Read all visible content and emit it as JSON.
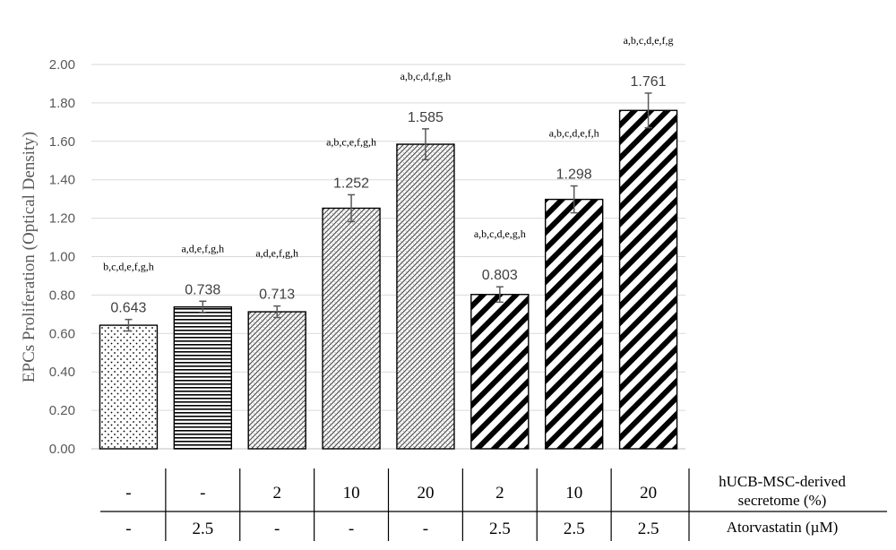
{
  "chart_data": {
    "type": "bar",
    "ylabel": "EPCs Proliferation (Optical Density)",
    "ylim": [
      0,
      2.0
    ],
    "yticks": [
      "0.00",
      "0.20",
      "0.40",
      "0.60",
      "0.80",
      "1.00",
      "1.20",
      "1.40",
      "1.60",
      "1.80",
      "2.00"
    ],
    "grid": true,
    "bars": [
      {
        "value": 0.643,
        "label": "0.643",
        "error": 0.03,
        "sig": "b,c,d,e,f,g,h",
        "pattern": "dots",
        "secretome": "-",
        "atorvastatin": "-"
      },
      {
        "value": 0.738,
        "label": "0.738",
        "error": 0.03,
        "sig": "a,d,e,f,g,h",
        "pattern": "hlines",
        "secretome": "-",
        "atorvastatin": "2.5"
      },
      {
        "value": 0.713,
        "label": "0.713",
        "error": 0.03,
        "sig": "a,d,e,f,g,h",
        "pattern": "fine",
        "secretome": "2",
        "atorvastatin": "-"
      },
      {
        "value": 1.252,
        "label": "1.252",
        "error": 0.07,
        "sig": "a,b,c,e,f,g,h",
        "pattern": "fine",
        "secretome": "10",
        "atorvastatin": "-"
      },
      {
        "value": 1.585,
        "label": "1.585",
        "error": 0.08,
        "sig": "a,b,c,d,f,g,h",
        "pattern": "fine",
        "secretome": "20",
        "atorvastatin": "-"
      },
      {
        "value": 0.803,
        "label": "0.803",
        "error": 0.04,
        "sig": "a,b,c,d,e,g,h",
        "pattern": "diag",
        "secretome": "2",
        "atorvastatin": "2.5"
      },
      {
        "value": 1.298,
        "label": "1.298",
        "error": 0.07,
        "sig": "a,b,c,d,e,f,h",
        "pattern": "diag",
        "secretome": "10",
        "atorvastatin": "2.5"
      },
      {
        "value": 1.761,
        "label": "1.761",
        "error": 0.09,
        "sig": "a,b,c,d,e,f,g",
        "pattern": "diag",
        "secretome": "20",
        "atorvastatin": "2.5"
      }
    ],
    "table_rows": [
      {
        "label": "hUCB-MSC-derived secretome (%)",
        "label_lines": [
          "hUCB-MSC-derived",
          "secretome (%)"
        ]
      },
      {
        "label": "Atorvastatin (µM)",
        "label_lines": [
          "Atorvastatin (µM)"
        ]
      }
    ]
  }
}
